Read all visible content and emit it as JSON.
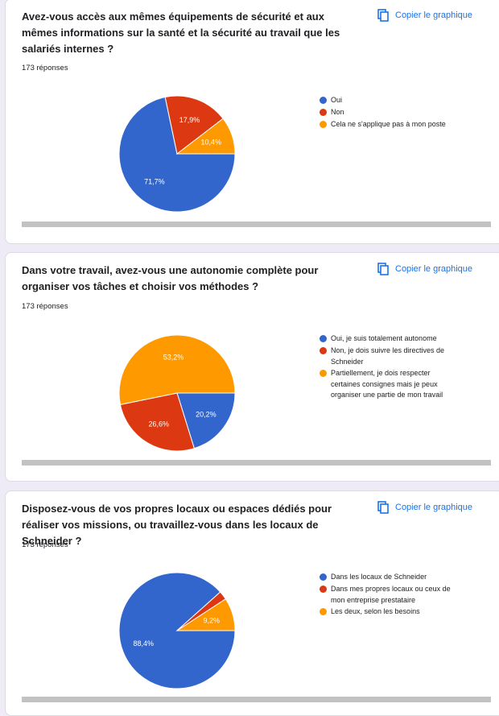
{
  "copy_label": "Copier le graphique",
  "colors": {
    "blue": "#3366cc",
    "red": "#dc3912",
    "orange": "#ff9900",
    "accent": "#1a73e8"
  },
  "questions": [
    {
      "title": "Avez-vous accès aux mêmes équipements de sécurité et aux mêmes informations sur la santé et la sécurité au travail que les salariés internes ?",
      "responses": "173 réponses",
      "legend": [
        "Oui",
        "Non",
        "Cela ne s'applique pas à mon poste"
      ]
    },
    {
      "title": "Dans votre travail, avez-vous une autonomie complète pour organiser vos tâches et choisir vos méthodes ?",
      "responses": "173 réponses",
      "legend": [
        "Oui, je suis totalement autonome",
        "Non, je dois suivre les directives de Schneider",
        "Partiellement, je dois respecter certaines consignes mais je peux organiser une partie de mon travail"
      ]
    },
    {
      "title": "Disposez-vous de vos propres locaux ou espaces dédiés pour réaliser vos missions, ou travaillez-vous dans les locaux de Schneider ?",
      "responses": "173 réponses",
      "legend": [
        "Dans les locaux de Schneider",
        "Dans mes propres locaux ou ceux de mon entreprise prestataire",
        "Les deux, selon les besoins"
      ]
    }
  ],
  "chart_data": [
    {
      "type": "pie",
      "categories": [
        "Oui",
        "Non",
        "Cela ne s'applique pas à mon poste"
      ],
      "values": [
        71.7,
        17.9,
        10.4
      ],
      "labels": [
        "71,7%",
        "17,9%",
        "10,4%"
      ],
      "legend_position": "right"
    },
    {
      "type": "pie",
      "categories": [
        "Oui, je suis totalement autonome",
        "Non, je dois suivre les directives de Schneider",
        "Partiellement, je dois respecter certaines consignes mais je peux organiser une partie de mon travail"
      ],
      "values": [
        20.2,
        26.6,
        53.2
      ],
      "labels": [
        "20,2%",
        "26,6%",
        "53,2%"
      ],
      "legend_position": "right"
    },
    {
      "type": "pie",
      "categories": [
        "Dans les locaux de Schneider",
        "Dans mes propres locaux ou ceux de mon entreprise prestataire",
        "Les deux, selon les besoins"
      ],
      "values": [
        88.4,
        2.4,
        9.2
      ],
      "labels": [
        "88,4%",
        "",
        "9,2%"
      ],
      "legend_position": "right"
    }
  ]
}
